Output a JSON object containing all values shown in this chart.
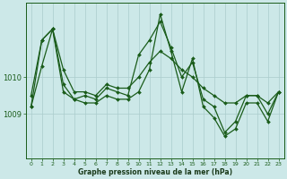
{
  "title": "Graphe pression niveau de la mer (hPa)",
  "bg_color": "#cce8e8",
  "plot_bg_color": "#cce8e8",
  "line_color": "#1a5c1a",
  "grid_color": "#aacccc",
  "text_color": "#1a5c1a",
  "xlabel_color": "#1a3a1a",
  "yticks": [
    1009,
    1010
  ],
  "ylim": [
    1007.8,
    1012.0
  ],
  "xlim": [
    -0.5,
    23.5
  ],
  "xticks": [
    0,
    1,
    2,
    3,
    4,
    5,
    6,
    7,
    8,
    9,
    10,
    11,
    12,
    13,
    14,
    15,
    16,
    17,
    18,
    19,
    20,
    21,
    22,
    23
  ],
  "series1_y": [
    1009.2,
    1011.0,
    1011.3,
    1010.2,
    1009.6,
    1009.6,
    1009.5,
    1009.8,
    1009.7,
    1009.7,
    1010.0,
    1010.4,
    1010.7,
    1010.5,
    1010.2,
    1010.0,
    1009.7,
    1009.5,
    1009.3,
    1009.3,
    1009.5,
    1009.5,
    1009.3,
    1009.6
  ],
  "series2_y": [
    1009.5,
    1011.0,
    1011.3,
    1009.8,
    1009.4,
    1009.5,
    1009.4,
    1009.7,
    1009.6,
    1009.5,
    1010.6,
    1011.0,
    1011.5,
    1010.8,
    1010.0,
    1010.4,
    1009.4,
    1009.2,
    1008.5,
    1008.8,
    1009.5,
    1009.5,
    1009.0,
    1009.6
  ],
  "series3_y": [
    1009.2,
    1010.3,
    1011.3,
    1009.6,
    1009.4,
    1009.3,
    1009.3,
    1009.5,
    1009.4,
    1009.4,
    1009.6,
    1010.2,
    1011.7,
    1010.7,
    1009.6,
    1010.5,
    1009.2,
    1008.9,
    1008.4,
    1008.6,
    1009.3,
    1009.3,
    1008.8,
    1009.6
  ]
}
